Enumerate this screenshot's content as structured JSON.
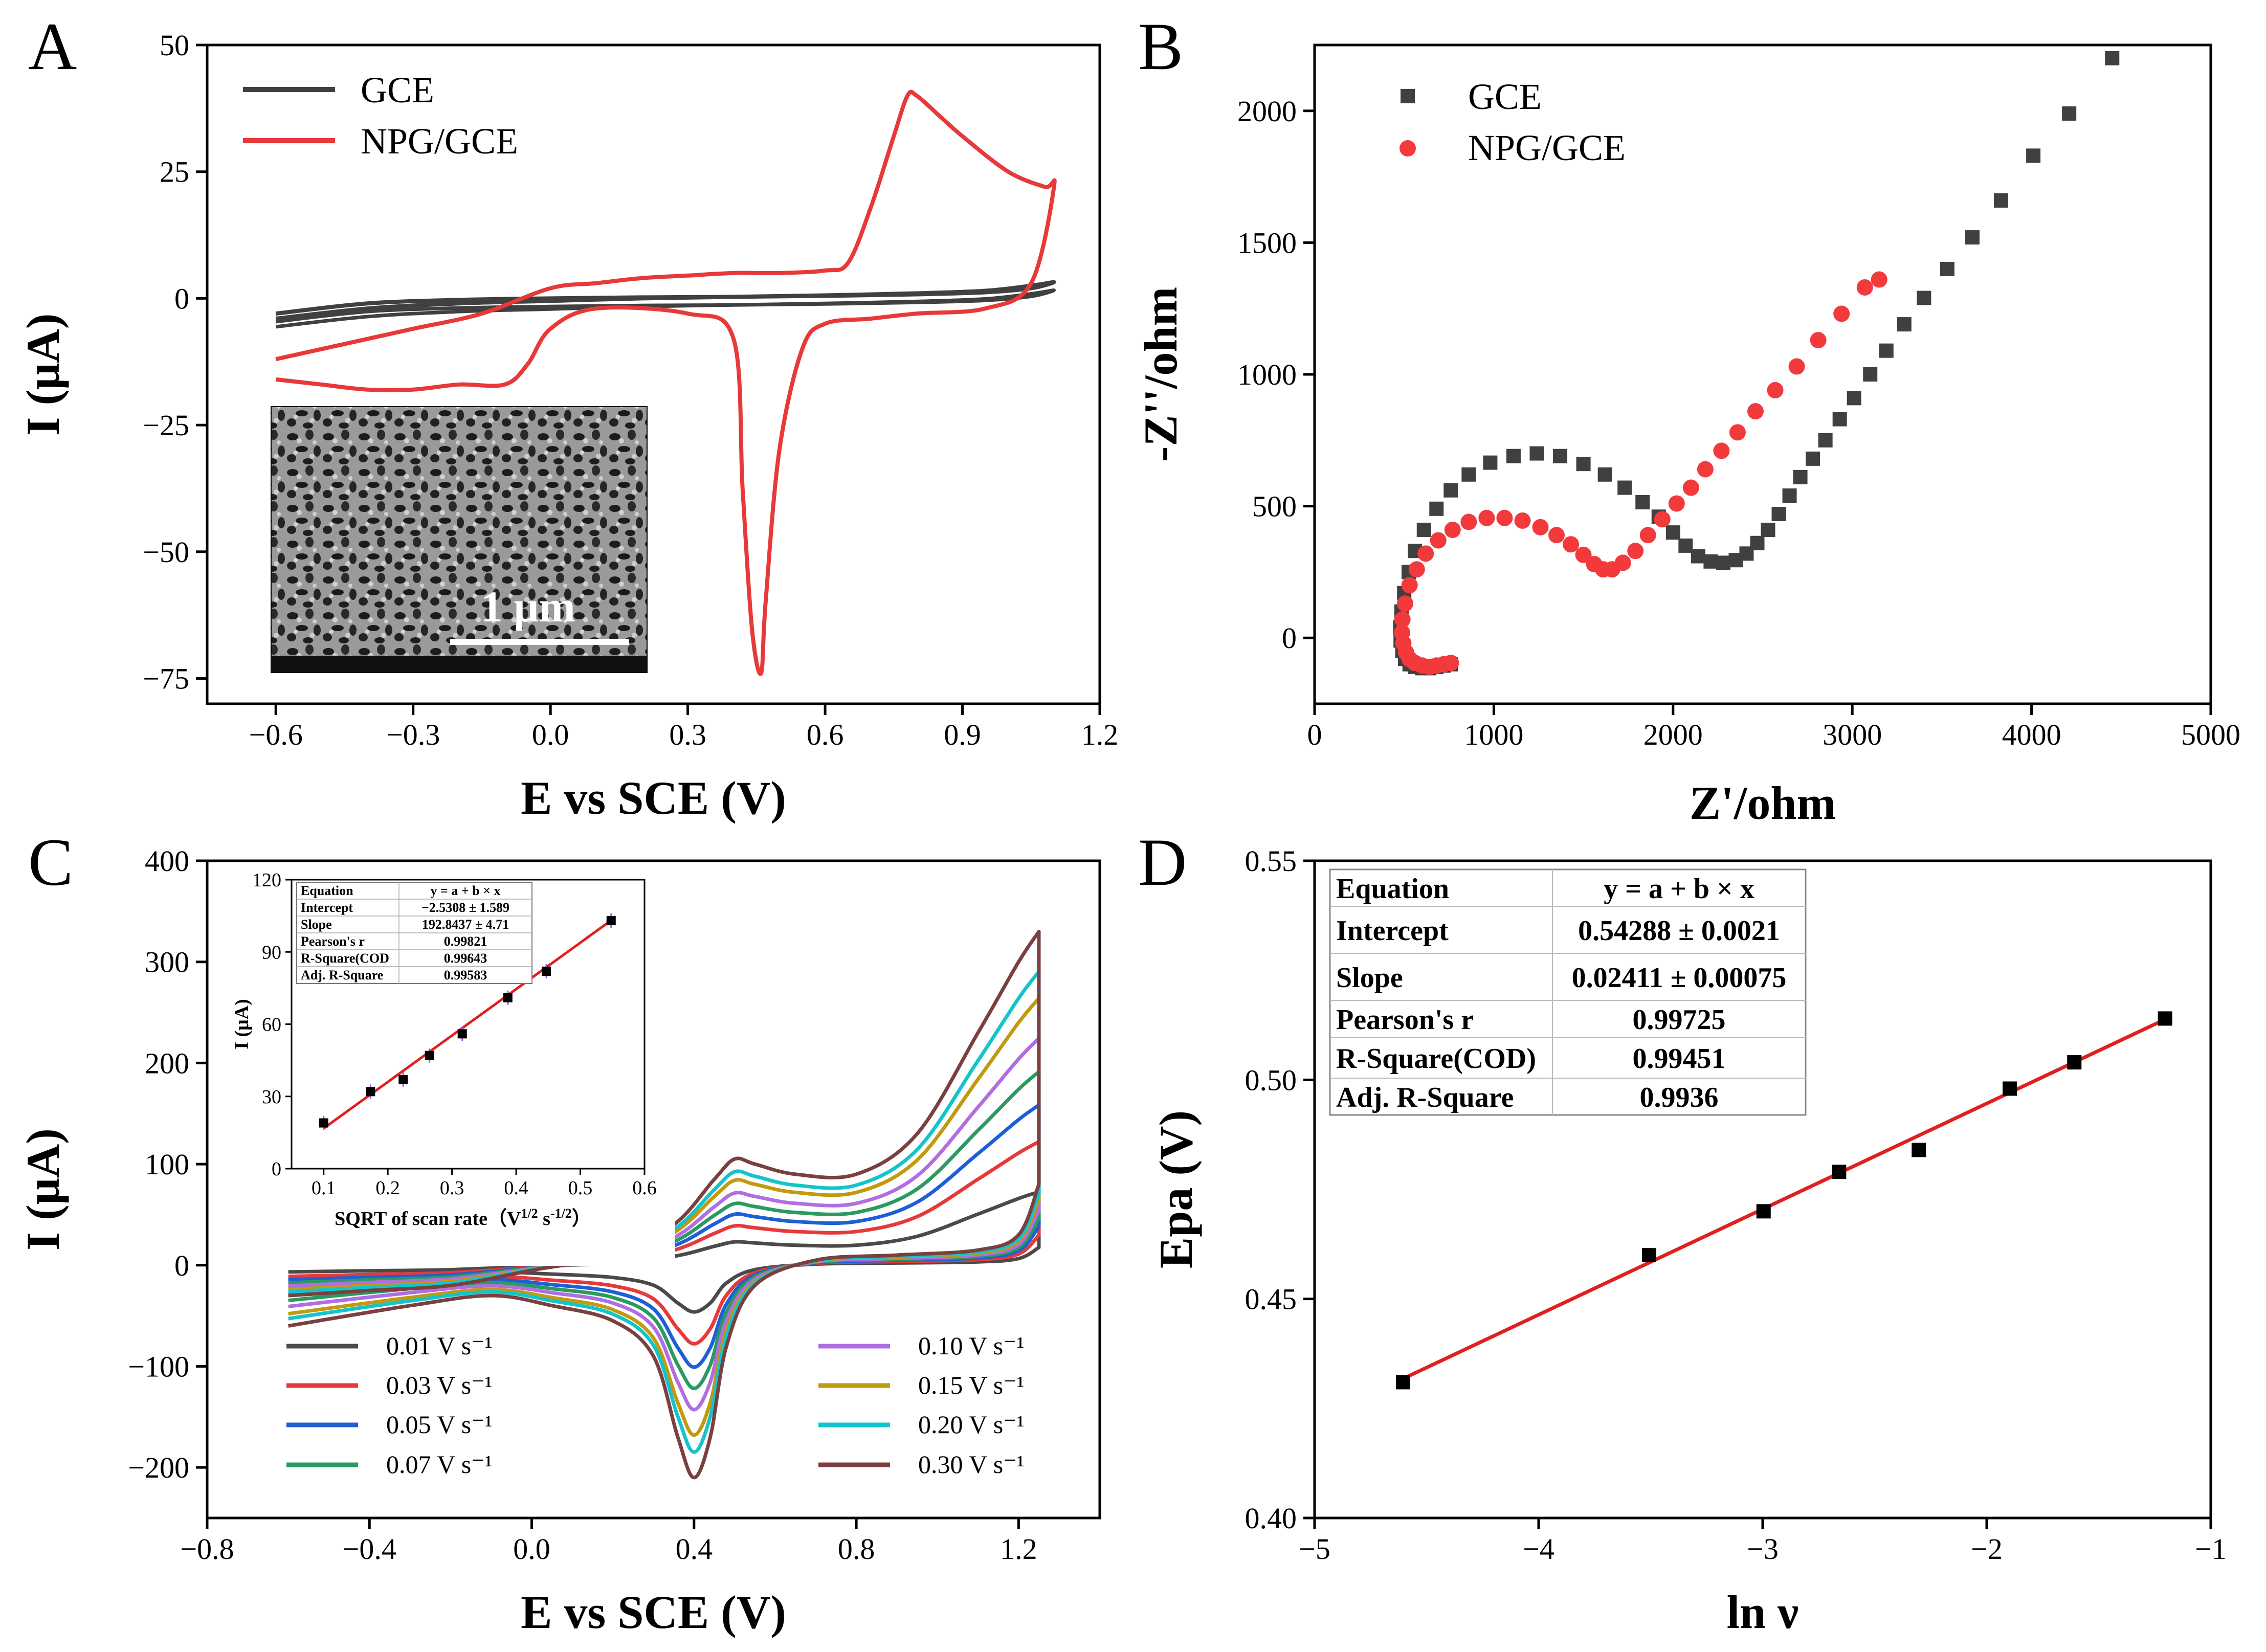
{
  "panels": {
    "A": {
      "letter": "A"
    },
    "B": {
      "letter": "B"
    },
    "C": {
      "letter": "C"
    },
    "D": {
      "letter": "D"
    }
  },
  "inset_a": {
    "scale_bar_label": "1 μm"
  },
  "chart_data": [
    {
      "id": "A",
      "type": "line",
      "xlabel": "E vs SCE (V)",
      "ylabel": "I (μA)",
      "xlim": [
        -0.75,
        1.2
      ],
      "ylim": [
        -80,
        50
      ],
      "xticks": [
        -0.6,
        -0.3,
        0.0,
        0.3,
        0.6,
        0.9,
        1.2
      ],
      "xtick_labels": [
        "−0.6",
        "−0.3",
        "0.0",
        "0.3",
        "0.6",
        "0.9",
        "1.2"
      ],
      "yticks": [
        50,
        25,
        0,
        -25,
        -50,
        -75
      ],
      "ytick_labels": [
        "50",
        "25",
        "0",
        "−25",
        "−50",
        "−75"
      ],
      "legend_position": "top-left",
      "series": [
        {
          "name": "GCE",
          "color": "#404040",
          "x": [
            -0.6,
            -0.4,
            -0.2,
            0.0,
            0.2,
            0.4,
            0.6,
            0.8,
            0.95,
            1.05,
            1.1,
            1.05,
            0.95,
            0.8,
            0.6,
            0.4,
            0.2,
            0.0,
            -0.2,
            -0.4,
            -0.6
          ],
          "y": [
            -4,
            -2,
            -1,
            -0.5,
            0,
            0.3,
            0.6,
            1.0,
            1.5,
            2.5,
            3.2,
            2.0,
            1.2,
            0.8,
            0.5,
            0.3,
            0.2,
            0,
            -0.3,
            -1,
            -3
          ]
        },
        {
          "name": "NPG/GCE",
          "color": "#e8393a",
          "x": [
            -0.6,
            -0.45,
            -0.3,
            -0.15,
            0.0,
            0.1,
            0.2,
            0.3,
            0.4,
            0.5,
            0.6,
            0.65,
            0.7,
            0.75,
            0.78,
            0.8,
            0.85,
            0.9,
            1.0,
            1.08,
            1.1,
            1.05,
            0.95,
            0.8,
            0.7,
            0.6,
            0.55,
            0.5,
            0.47,
            0.46,
            0.44,
            0.42,
            0.4,
            0.3,
            0.1,
            0.0,
            -0.05,
            -0.1,
            -0.2,
            -0.3,
            -0.4,
            -0.5,
            -0.6
          ],
          "y": [
            -12,
            -9,
            -6,
            -3,
            2,
            3,
            4,
            4.5,
            5,
            5,
            5.5,
            7,
            18,
            32,
            40,
            40,
            36,
            32,
            25,
            22,
            22,
            3,
            -2,
            -3,
            -4,
            -5,
            -10,
            -30,
            -60,
            -74,
            -65,
            -38,
            -8,
            -3,
            -2,
            -6,
            -13,
            -17,
            -17,
            -18,
            -18,
            -17,
            -16
          ]
        }
      ]
    },
    {
      "id": "B",
      "type": "scatter",
      "xlabel": "Z'/ohm",
      "ylabel": "-Z''/ohm",
      "xlim": [
        0,
        5000
      ],
      "ylim": [
        -250,
        2250
      ],
      "xticks": [
        0,
        1000,
        2000,
        3000,
        4000,
        5000
      ],
      "xtick_labels": [
        "0",
        "1000",
        "2000",
        "3000",
        "4000",
        "5000"
      ],
      "yticks": [
        0,
        500,
        1000,
        1500,
        2000
      ],
      "ytick_labels": [
        "0",
        "500",
        "1000",
        "1500",
        "2000"
      ],
      "legend_position": "top-left",
      "series": [
        {
          "name": "GCE",
          "marker": "square",
          "color": "#404040",
          "x": [
            760,
            720,
            680,
            640,
            600,
            560,
            530,
            505,
            490,
            480,
            478,
            485,
            500,
            525,
            560,
            610,
            680,
            760,
            860,
            980,
            1110,
            1240,
            1370,
            1500,
            1620,
            1730,
            1830,
            1920,
            2000,
            2070,
            2140,
            2210,
            2280,
            2350,
            2410,
            2470,
            2530,
            2590,
            2650,
            2710,
            2780,
            2850,
            2930,
            3010,
            3100,
            3190,
            3290,
            3400,
            3530,
            3670,
            3830,
            4010,
            4210,
            4450
          ],
          "y": [
            -100,
            -105,
            -110,
            -115,
            -115,
            -110,
            -100,
            -80,
            -50,
            -10,
            40,
            100,
            170,
            250,
            330,
            410,
            490,
            560,
            620,
            665,
            690,
            700,
            690,
            660,
            620,
            570,
            515,
            460,
            400,
            350,
            310,
            290,
            285,
            295,
            320,
            360,
            410,
            470,
            540,
            610,
            680,
            750,
            830,
            910,
            1000,
            1090,
            1190,
            1290,
            1400,
            1520,
            1660,
            1830,
            1990,
            2200
          ]
        },
        {
          "name": "NPG/GCE",
          "marker": "circle",
          "color": "#f2393c",
          "x": [
            760,
            720,
            680,
            640,
            600,
            560,
            530,
            510,
            495,
            488,
            490,
            505,
            530,
            570,
            620,
            690,
            770,
            860,
            960,
            1060,
            1160,
            1260,
            1350,
            1430,
            1500,
            1560,
            1610,
            1660,
            1720,
            1790,
            1860,
            1940,
            2020,
            2100,
            2180,
            2270,
            2360,
            2460,
            2570,
            2690,
            2810,
            2940,
            3070,
            3150
          ],
          "y": [
            -95,
            -100,
            -105,
            -110,
            -105,
            -95,
            -80,
            -55,
            -20,
            20,
            70,
            130,
            200,
            260,
            320,
            370,
            410,
            440,
            455,
            455,
            445,
            420,
            390,
            355,
            315,
            280,
            260,
            260,
            285,
            330,
            390,
            450,
            510,
            570,
            640,
            710,
            780,
            860,
            940,
            1030,
            1130,
            1230,
            1330,
            1360
          ]
        }
      ]
    },
    {
      "id": "C",
      "type": "line",
      "xlabel": "E vs SCE (V)",
      "ylabel": "I (μA)",
      "xlim": [
        -0.8,
        1.4
      ],
      "ylim": [
        -250,
        400
      ],
      "xticks": [
        -0.8,
        -0.4,
        0.0,
        0.4,
        0.8,
        1.2
      ],
      "xtick_labels": [
        "−0.8",
        "−0.4",
        "0.0",
        "0.4",
        "0.8",
        "1.2"
      ],
      "yticks": [
        400,
        300,
        200,
        100,
        0,
        -100,
        -200
      ],
      "ytick_labels": [
        "400",
        "300",
        "200",
        "100",
        "0",
        "−100",
        "−200"
      ],
      "legend_position": "bottom",
      "legend_columns": [
        [
          "0.01 V s⁻¹",
          "0.03 V s⁻¹",
          "0.05 V s⁻¹",
          "0.07 V s⁻¹"
        ],
        [
          "0.10 V s⁻¹",
          "0.15 V s⁻¹",
          "0.20 V s⁻¹",
          "0.30 V s⁻¹"
        ]
      ],
      "series": [
        {
          "name": "0.01 V s⁻¹",
          "color": "#4a4a4a",
          "scale": 0.22
        },
        {
          "name": "0.03 V s⁻¹",
          "color": "#e8393a",
          "scale": 0.37
        },
        {
          "name": "0.05 V s⁻¹",
          "color": "#1f5fd6",
          "scale": 0.48
        },
        {
          "name": "0.07 V s⁻¹",
          "color": "#2a9a60",
          "scale": 0.58
        },
        {
          "name": "0.10 V s⁻¹",
          "color": "#b06ee0",
          "scale": 0.68
        },
        {
          "name": "0.15 V s⁻¹",
          "color": "#c19a10",
          "scale": 0.8
        },
        {
          "name": "0.20 V s⁻¹",
          "color": "#14c4cc",
          "scale": 0.88
        },
        {
          "name": "0.30 V s⁻¹",
          "color": "#7a4040",
          "scale": 1.0
        }
      ],
      "reference_curve": {
        "forward": {
          "x": [
            -0.6,
            -0.4,
            -0.2,
            0.0,
            0.2,
            0.35,
            0.45,
            0.5,
            0.55,
            0.65,
            0.8,
            0.95,
            1.1,
            1.2,
            1.25
          ],
          "y": [
            -30,
            -25,
            -20,
            -5,
            10,
            40,
            85,
            105,
            100,
            90,
            90,
            130,
            230,
            300,
            330
          ]
        },
        "reverse": {
          "x": [
            1.25,
            1.2,
            1.1,
            0.9,
            0.7,
            0.55,
            0.48,
            0.44,
            0.4,
            0.36,
            0.3,
            0.2,
            0.05,
            -0.1,
            -0.3,
            -0.6
          ],
          "y": [
            80,
            30,
            15,
            10,
            5,
            -20,
            -80,
            -170,
            -210,
            -170,
            -90,
            -55,
            -40,
            -30,
            -40,
            -60
          ]
        }
      }
    },
    {
      "id": "C-inset",
      "type": "scatter",
      "xlabel": "SQRT of scan rate（V<sup>1/2</sup> s<sup>-1/2</sup>）",
      "ylabel": "I (μA)",
      "xlim": [
        0.05,
        0.6
      ],
      "ylim": [
        0,
        120
      ],
      "xticks": [
        0.1,
        0.2,
        0.3,
        0.4,
        0.5,
        0.6
      ],
      "xtick_labels": [
        "0.1",
        "0.2",
        "0.3",
        "0.4",
        "0.5",
        "0.6"
      ],
      "yticks": [
        0,
        30,
        60,
        90,
        120
      ],
      "ytick_labels": [
        "0",
        "30",
        "60",
        "90",
        "120"
      ],
      "x": [
        0.1,
        0.173,
        0.224,
        0.265,
        0.316,
        0.387,
        0.447,
        0.548
      ],
      "y": [
        19,
        32,
        37,
        47,
        56,
        71,
        82,
        103
      ],
      "fit": {
        "x": [
          0.1,
          0.548
        ],
        "y": [
          16.75,
          103.1
        ]
      },
      "table": [
        [
          "Equation",
          "y = a + b × x"
        ],
        [
          "Intercept",
          "−2.5308 ± 1.589"
        ],
        [
          "Slope",
          "192.8437 ± 4.71"
        ],
        [
          "Pearson's r",
          "0.99821"
        ],
        [
          "R-Square(COD",
          "0.99643"
        ],
        [
          "Adj. R-Square",
          "0.99583"
        ]
      ]
    },
    {
      "id": "D",
      "type": "scatter",
      "xlabel": "ln ν",
      "ylabel": "Epa (V)",
      "xlim": [
        -5,
        -1
      ],
      "ylim": [
        0.4,
        0.55
      ],
      "xticks": [
        -5,
        -4,
        -3,
        -2,
        -1
      ],
      "xtick_labels": [
        "−5",
        "−4",
        "−3",
        "−2",
        "−1"
      ],
      "yticks": [
        0.4,
        0.45,
        0.5,
        0.55
      ],
      "ytick_labels": [
        "0.40",
        "0.45",
        "0.50",
        "0.55"
      ],
      "x": [
        -4.605,
        -3.507,
        -2.996,
        -2.659,
        -2.303,
        -1.897,
        -1.609,
        -1.204
      ],
      "y": [
        0.431,
        0.46,
        0.47,
        0.479,
        0.484,
        0.498,
        0.504,
        0.514
      ],
      "fit": {
        "x": [
          -4.605,
          -1.204
        ],
        "y": [
          0.4318,
          0.5138
        ]
      },
      "table": [
        [
          "Equation",
          "y = a + b × x"
        ],
        [
          "Intercept",
          "0.54288 ± 0.0021"
        ],
        [
          "Slope",
          "0.02411 ± 0.00075"
        ],
        [
          "Pearson's r",
          "0.99725"
        ],
        [
          "R-Square(COD)",
          "0.99451"
        ],
        [
          "Adj. R-Square",
          "0.9936"
        ]
      ]
    }
  ]
}
